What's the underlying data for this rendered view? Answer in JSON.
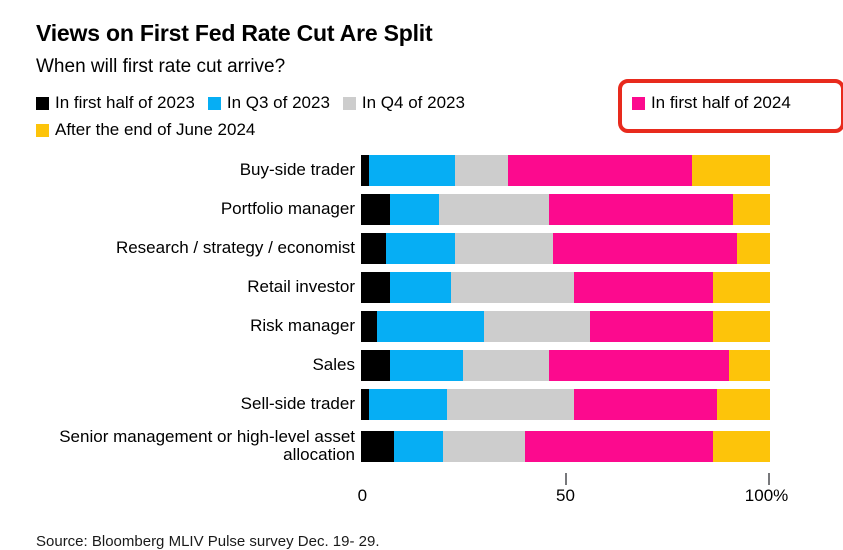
{
  "header": {
    "title": "Views on First Fed Rate Cut Are Split",
    "subtitle": "When will first rate cut arrive?"
  },
  "legend": {
    "items": [
      {
        "label": "In first half of 2023",
        "color": "#000000",
        "highlighted": false
      },
      {
        "label": "In Q3 of 2023",
        "color": "#06aef4",
        "highlighted": false
      },
      {
        "label": "In Q4 of 2023",
        "color": "#cdcdcd",
        "highlighted": false
      },
      {
        "label": "In first half of 2024",
        "color": "#fc0a8e",
        "highlighted": true
      },
      {
        "label": "After the end of June 2024",
        "color": "#fdc40a",
        "highlighted": false
      }
    ],
    "highlight_box_color": "#e82a1d"
  },
  "chart_data": {
    "type": "bar",
    "orientation": "horizontal",
    "stacked": true,
    "unit": "percent",
    "title": "Views on First Fed Rate Cut Are Split",
    "subtitle": "When will first rate cut arrive?",
    "xlabel": "",
    "ylabel": "",
    "xlim": [
      0,
      100
    ],
    "x_ticks": [
      0,
      50,
      100
    ],
    "x_tick_labels": [
      "0",
      "50",
      "100%"
    ],
    "grid": false,
    "legend_position": "top",
    "categories": [
      "Buy-side trader",
      "Portfolio manager",
      "Research / strategy / economist",
      "Retail investor",
      "Risk manager",
      "Sales",
      "Sell-side trader",
      "Senior management or high-level asset allocation"
    ],
    "series": [
      {
        "name": "In first half of 2023",
        "color": "#000000",
        "values": [
          2,
          7,
          6,
          7,
          4,
          7,
          2,
          8
        ]
      },
      {
        "name": "In Q3 of 2023",
        "color": "#06aef4",
        "values": [
          21,
          12,
          17,
          15,
          26,
          18,
          19,
          12
        ]
      },
      {
        "name": "In Q4 of 2023",
        "color": "#cdcdcd",
        "values": [
          13,
          27,
          24,
          30,
          26,
          21,
          31,
          20
        ]
      },
      {
        "name": "In first half of 2024",
        "color": "#fc0a8e",
        "values": [
          45,
          45,
          45,
          34,
          30,
          44,
          35,
          46
        ]
      },
      {
        "name": "After the end of June 2024",
        "color": "#fdc40a",
        "values": [
          19,
          9,
          8,
          14,
          14,
          10,
          13,
          14
        ]
      }
    ]
  },
  "footer": {
    "source": "Source: Bloomberg MLIV Pulse survey Dec. 19- 29."
  }
}
